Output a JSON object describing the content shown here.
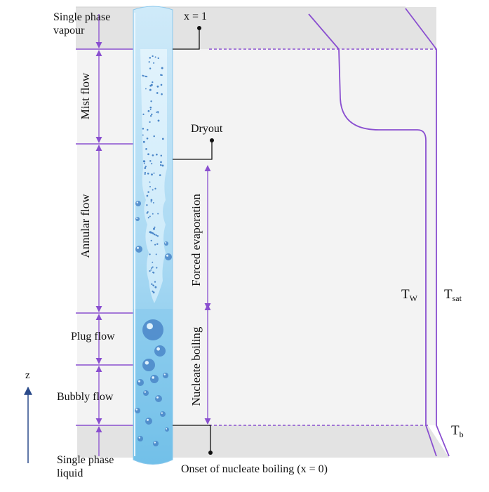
{
  "labels": {
    "single_phase_vapour_l1": "Single phase",
    "single_phase_vapour_l2": "vapour",
    "x_equals_1": "x = 1",
    "mist_flow": "Mist flow",
    "dryout": "Dryout",
    "annular_flow": "Annular flow",
    "forced_evaporation": "Forced evaporation",
    "plug_flow": "Plug flow",
    "nucleate_boiling": "Nucleate boiling",
    "bubbly_flow": "Bubbly flow",
    "single_phase_liquid_l1": "Single phase",
    "single_phase_liquid_l2": "liquid",
    "onset_nucleate_boiling": "Onset of nucleate boiling (x = 0)",
    "z_axis": "z",
    "tw_main": "T",
    "tw_sub": "W",
    "tsat_main": "T",
    "tsat_sub": "sat",
    "tb_main": "T",
    "tb_sub": "b"
  },
  "colors": {
    "region_purple": "#8a4fd0",
    "grey_box": "#e6e6e6",
    "tube_light": "#c7e6f7",
    "tube_mid": "#7ec6ec",
    "bubble": "#4a86c8",
    "axis_blue": "#2a4a8a"
  }
}
